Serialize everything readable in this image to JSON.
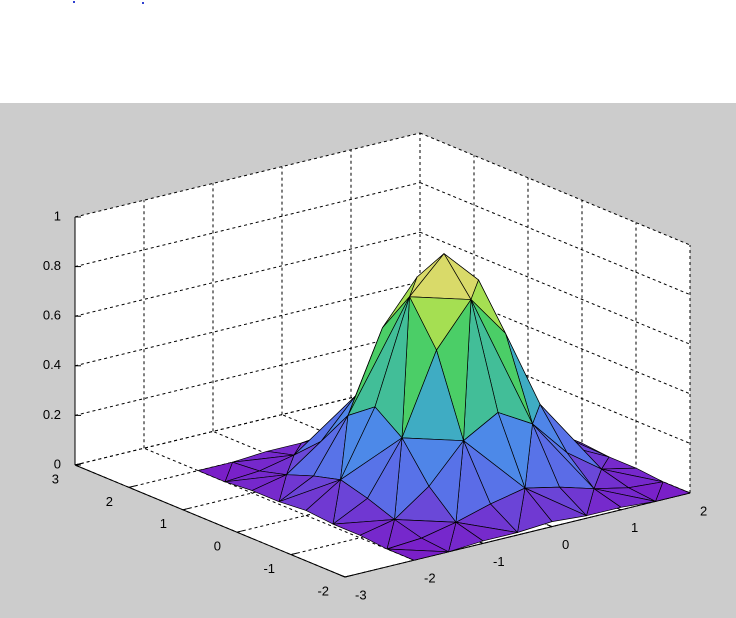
{
  "chart_data": {
    "type": "surface",
    "x": [
      -2,
      -1.5,
      -1,
      -0.5,
      0,
      0.5,
      1,
      1.5,
      2
    ],
    "y": [
      -2,
      -1.5,
      -1,
      -0.5,
      0,
      0.5,
      1,
      1.5,
      2
    ],
    "z": [
      [
        0.0,
        0.0,
        0.01,
        0.01,
        0.02,
        0.01,
        0.01,
        0.0,
        0.0
      ],
      [
        0.0,
        0.01,
        0.04,
        0.08,
        0.11,
        0.08,
        0.04,
        0.01,
        0.0
      ],
      [
        0.01,
        0.04,
        0.14,
        0.29,
        0.37,
        0.29,
        0.14,
        0.04,
        0.01
      ],
      [
        0.01,
        0.08,
        0.29,
        0.61,
        0.78,
        0.61,
        0.29,
        0.08,
        0.01
      ],
      [
        0.02,
        0.11,
        0.37,
        0.78,
        0.92,
        0.78,
        0.37,
        0.11,
        0.02
      ],
      [
        0.01,
        0.08,
        0.29,
        0.61,
        0.78,
        0.61,
        0.29,
        0.08,
        0.01
      ],
      [
        0.01,
        0.04,
        0.14,
        0.29,
        0.37,
        0.29,
        0.14,
        0.04,
        0.01
      ],
      [
        0.0,
        0.01,
        0.04,
        0.08,
        0.11,
        0.08,
        0.04,
        0.01,
        0.0
      ],
      [
        0.0,
        0.0,
        0.01,
        0.01,
        0.02,
        0.01,
        0.01,
        0.0,
        0.0
      ]
    ],
    "xlim": [
      -3,
      2
    ],
    "ylim": [
      -2,
      3
    ],
    "zlim": [
      0,
      1
    ],
    "xticks": [
      -3,
      -2,
      -1,
      0,
      1,
      2
    ],
    "yticks": [
      -2,
      -1,
      0,
      1,
      2,
      3
    ],
    "zticks": [
      0,
      0.2,
      0.4,
      0.6,
      0.8,
      1
    ],
    "grid": true,
    "colormap": [
      "#7a1fc8",
      "#5a6fe8",
      "#4a90e8",
      "#3cb4b8",
      "#4cd060",
      "#a0e050",
      "#e8d870",
      "#f0a050"
    ]
  }
}
